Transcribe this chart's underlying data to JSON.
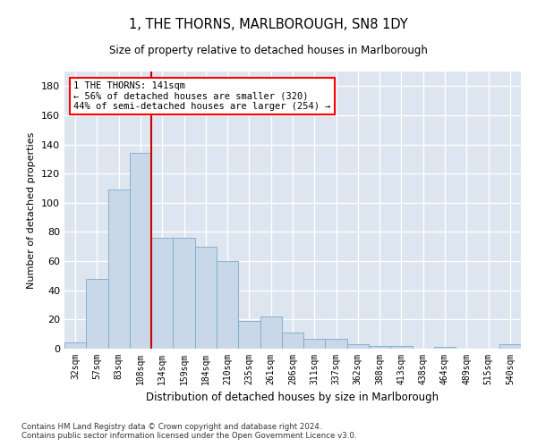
{
  "title": "1, THE THORNS, MARLBOROUGH, SN8 1DY",
  "subtitle": "Size of property relative to detached houses in Marlborough",
  "xlabel": "Distribution of detached houses by size in Marlborough",
  "ylabel": "Number of detached properties",
  "bar_color": "#c8d8e8",
  "bar_edge_color": "#7aaac8",
  "background_color": "#dde6f0",
  "categories": [
    "32sqm",
    "57sqm",
    "83sqm",
    "108sqm",
    "134sqm",
    "159sqm",
    "184sqm",
    "210sqm",
    "235sqm",
    "261sqm",
    "286sqm",
    "311sqm",
    "337sqm",
    "362sqm",
    "388sqm",
    "413sqm",
    "438sqm",
    "464sqm",
    "489sqm",
    "515sqm",
    "540sqm"
  ],
  "values": [
    4,
    48,
    109,
    134,
    76,
    76,
    70,
    60,
    19,
    22,
    11,
    7,
    7,
    3,
    2,
    2,
    0,
    1,
    0,
    0,
    3
  ],
  "ylim": [
    0,
    190
  ],
  "yticks": [
    0,
    20,
    40,
    60,
    80,
    100,
    120,
    140,
    160,
    180
  ],
  "vline_x_index": 4,
  "vline_color": "#cc0000",
  "annotation_line1": "1 THE THORNS: 141sqm",
  "annotation_line2": "← 56% of detached houses are smaller (320)",
  "annotation_line3": "44% of semi-detached houses are larger (254) →",
  "footer1": "Contains HM Land Registry data © Crown copyright and database right 2024.",
  "footer2": "Contains public sector information licensed under the Open Government Licence v3.0."
}
